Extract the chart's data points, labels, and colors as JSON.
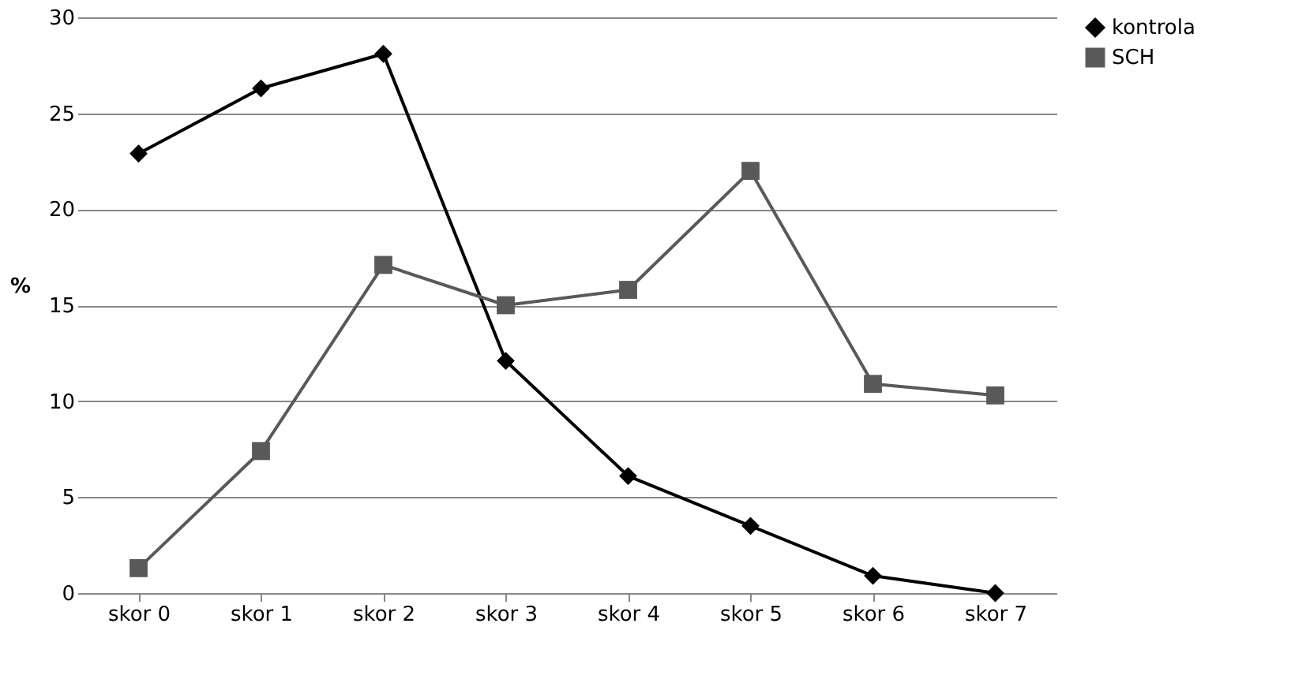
{
  "chart_data": {
    "type": "line",
    "ylabel": "%",
    "categories": [
      "skor 0",
      "skor 1",
      "skor 2",
      "skor 3",
      "skor 4",
      "skor 5",
      "skor 6",
      "skor 7"
    ],
    "series": [
      {
        "name": "kontrola",
        "color": "#000000",
        "marker": "diamond",
        "values": [
          22.9,
          26.3,
          28.1,
          12.1,
          6.1,
          3.5,
          0.9,
          0.0
        ]
      },
      {
        "name": "SCH",
        "color": "#595959",
        "marker": "square",
        "values": [
          1.3,
          7.4,
          17.1,
          15.0,
          15.8,
          22.0,
          10.9,
          10.3
        ]
      }
    ],
    "ylim": [
      0,
      30
    ],
    "yticks": [
      0,
      5,
      10,
      15,
      20,
      25,
      30
    ],
    "grid": "y",
    "legend": "right",
    "line_style": "solid"
  }
}
